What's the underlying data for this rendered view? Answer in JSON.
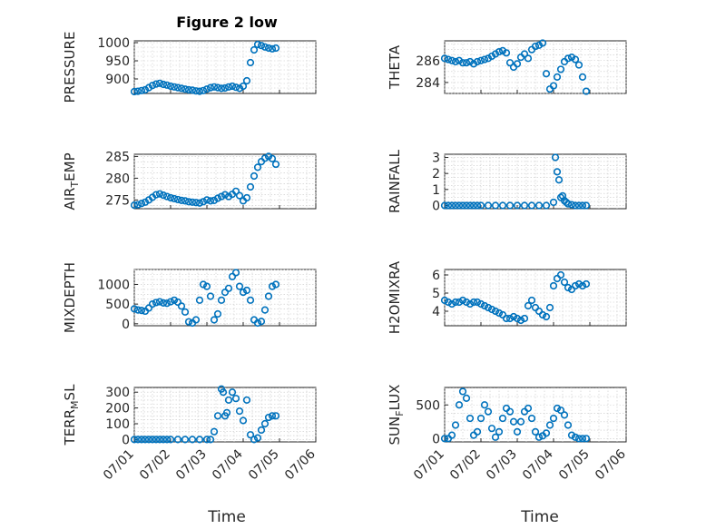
{
  "figure": {
    "title": "Figure 2 low",
    "marker_color": "#0072BD",
    "xlabel": "Time",
    "xticks": [
      "07/01",
      "07/02",
      "07/03",
      "07/04",
      "07/05",
      "07/06"
    ],
    "xlim_days": [
      0,
      5
    ]
  },
  "chart_data": [
    {
      "type": "scatter",
      "id": "pressure",
      "ylabel": "PRESSURE",
      "ylabel_sub": "",
      "yticks": [
        "900",
        "950",
        "1000"
      ],
      "yticks_val": [
        900,
        950,
        1000
      ],
      "ylim": [
        860,
        1005
      ],
      "x": [
        0,
        0.1,
        0.2,
        0.3,
        0.4,
        0.5,
        0.6,
        0.7,
        0.8,
        0.9,
        1.0,
        1.1,
        1.2,
        1.3,
        1.4,
        1.5,
        1.6,
        1.7,
        1.8,
        1.9,
        2.0,
        2.1,
        2.2,
        2.3,
        2.4,
        2.5,
        2.6,
        2.7,
        2.8,
        2.9,
        3.0,
        3.1,
        3.2,
        3.3,
        3.4,
        3.5,
        3.6,
        3.7,
        3.8,
        3.9
      ],
      "y": [
        865,
        866,
        868,
        870,
        876,
        882,
        886,
        888,
        885,
        883,
        880,
        878,
        876,
        874,
        872,
        870,
        869,
        867,
        866,
        868,
        872,
        876,
        878,
        876,
        874,
        875,
        878,
        880,
        877,
        874,
        880,
        895,
        945,
        980,
        995,
        992,
        988,
        985,
        983,
        985
      ]
    },
    {
      "type": "scatter",
      "id": "theta",
      "ylabel": "THETA",
      "ylabel_sub": "",
      "yticks": [
        "284",
        "286"
      ],
      "yticks_val": [
        284,
        286
      ],
      "ylim": [
        283,
        287.8
      ],
      "x": [
        0,
        0.1,
        0.2,
        0.3,
        0.4,
        0.5,
        0.6,
        0.7,
        0.8,
        0.9,
        1.0,
        1.1,
        1.2,
        1.3,
        1.4,
        1.5,
        1.6,
        1.7,
        1.8,
        1.9,
        2.0,
        2.1,
        2.2,
        2.3,
        2.4,
        2.5,
        2.6,
        2.7,
        2.8,
        2.9,
        3.0,
        3.1,
        3.2,
        3.3,
        3.4,
        3.5,
        3.6,
        3.7,
        3.8,
        3.9
      ],
      "y": [
        286.2,
        286.1,
        286.0,
        285.9,
        286.0,
        285.8,
        285.8,
        285.9,
        285.7,
        285.9,
        286.0,
        286.1,
        286.2,
        286.4,
        286.6,
        286.8,
        286.9,
        286.7,
        285.8,
        285.4,
        285.7,
        286.3,
        286.6,
        286.2,
        287.0,
        287.3,
        287.4,
        287.6,
        284.8,
        283.4,
        283.7,
        284.5,
        285.2,
        285.9,
        286.2,
        286.3,
        286.1,
        285.6,
        284.5,
        283.2
      ]
    },
    {
      "type": "scatter",
      "id": "air_temp",
      "ylabel": "AIR",
      "ylabel_sub": "T",
      "ylabel_rest": "EMP",
      "yticks": [
        "275",
        "280",
        "285"
      ],
      "yticks_val": [
        275,
        280,
        285
      ],
      "ylim": [
        273,
        285.5
      ],
      "x": [
        0,
        0.1,
        0.2,
        0.3,
        0.4,
        0.5,
        0.6,
        0.7,
        0.8,
        0.9,
        1.0,
        1.1,
        1.2,
        1.3,
        1.4,
        1.5,
        1.6,
        1.7,
        1.8,
        1.9,
        2.0,
        2.1,
        2.2,
        2.3,
        2.4,
        2.5,
        2.6,
        2.7,
        2.8,
        2.9,
        3.0,
        3.1,
        3.2,
        3.3,
        3.4,
        3.5,
        3.6,
        3.7,
        3.8,
        3.9
      ],
      "y": [
        273.8,
        273.9,
        274.2,
        274.5,
        275.0,
        275.6,
        276.2,
        276.4,
        276.1,
        275.8,
        275.5,
        275.3,
        275.1,
        274.9,
        274.8,
        274.6,
        274.5,
        274.4,
        274.3,
        274.6,
        275.0,
        274.8,
        274.9,
        275.4,
        275.8,
        276.2,
        275.8,
        276.3,
        277.0,
        276.0,
        274.8,
        275.5,
        278.0,
        280.5,
        282.5,
        283.8,
        284.6,
        285.0,
        284.5,
        283.2
      ]
    },
    {
      "type": "scatter",
      "id": "rainfall",
      "ylabel": "RAINFALL",
      "ylabel_sub": "",
      "yticks": [
        "0",
        "1",
        "2",
        "3"
      ],
      "yticks_val": [
        0,
        1,
        2,
        3
      ],
      "ylim": [
        -0.2,
        3.2
      ],
      "x": [
        0,
        0.1,
        0.2,
        0.3,
        0.4,
        0.5,
        0.6,
        0.7,
        0.8,
        0.9,
        1.0,
        1.2,
        1.4,
        1.6,
        1.8,
        2.0,
        2.2,
        2.4,
        2.6,
        2.8,
        3.0,
        3.05,
        3.1,
        3.15,
        3.2,
        3.25,
        3.3,
        3.35,
        3.4,
        3.5,
        3.6,
        3.7,
        3.8,
        3.9
      ],
      "y": [
        0,
        0,
        0,
        0,
        0,
        0,
        0,
        0,
        0,
        0,
        0,
        0,
        0,
        0,
        0,
        0,
        0,
        0,
        0,
        0,
        0.2,
        3.0,
        2.1,
        1.6,
        0.5,
        0.6,
        0.3,
        0.2,
        0.1,
        0.05,
        0,
        0,
        0,
        0
      ]
    },
    {
      "type": "scatter",
      "id": "mixdepth",
      "ylabel": "MIXDEPTH",
      "ylabel_sub": "",
      "yticks": [
        "0",
        "500",
        "1000"
      ],
      "yticks_val": [
        0,
        500,
        1000
      ],
      "ylim": [
        -50,
        1380
      ],
      "x": [
        0,
        0.1,
        0.2,
        0.3,
        0.4,
        0.5,
        0.6,
        0.7,
        0.8,
        0.9,
        1.0,
        1.1,
        1.2,
        1.3,
        1.4,
        1.5,
        1.6,
        1.7,
        1.8,
        1.9,
        2.0,
        2.1,
        2.2,
        2.3,
        2.4,
        2.5,
        2.6,
        2.7,
        2.8,
        2.9,
        3.0,
        3.1,
        3.2,
        3.3,
        3.4,
        3.5,
        3.6,
        3.7,
        3.8,
        3.9
      ],
      "y": [
        380,
        350,
        340,
        320,
        400,
        500,
        540,
        560,
        530,
        520,
        560,
        600,
        550,
        450,
        300,
        50,
        20,
        100,
        600,
        1000,
        950,
        700,
        100,
        250,
        600,
        800,
        900,
        1200,
        1300,
        950,
        800,
        850,
        600,
        100,
        20,
        60,
        350,
        700,
        950,
        1000
      ]
    },
    {
      "type": "scatter",
      "id": "h2omixra",
      "ylabel": "H2OMIXRA",
      "ylabel_sub": "",
      "yticks": [
        "4",
        "5",
        "6"
      ],
      "yticks_val": [
        4,
        5,
        6
      ],
      "ylim": [
        3.2,
        6.3
      ],
      "x": [
        0,
        0.1,
        0.2,
        0.3,
        0.4,
        0.5,
        0.6,
        0.7,
        0.8,
        0.9,
        1.0,
        1.1,
        1.2,
        1.3,
        1.4,
        1.5,
        1.6,
        1.7,
        1.8,
        1.9,
        2.0,
        2.1,
        2.2,
        2.3,
        2.4,
        2.5,
        2.6,
        2.7,
        2.8,
        2.9,
        3.0,
        3.1,
        3.2,
        3.3,
        3.4,
        3.5,
        3.6,
        3.7,
        3.8,
        3.9
      ],
      "y": [
        4.6,
        4.5,
        4.4,
        4.5,
        4.5,
        4.6,
        4.5,
        4.4,
        4.5,
        4.5,
        4.4,
        4.3,
        4.2,
        4.1,
        4.0,
        3.9,
        3.8,
        3.6,
        3.6,
        3.7,
        3.6,
        3.5,
        3.6,
        4.3,
        4.6,
        4.2,
        4.0,
        3.8,
        3.7,
        4.2,
        5.4,
        5.8,
        6.0,
        5.6,
        5.3,
        5.2,
        5.4,
        5.5,
        5.4,
        5.5
      ]
    },
    {
      "type": "scatter",
      "id": "terr_msl",
      "ylabel": "TERR",
      "ylabel_sub": "M",
      "ylabel_rest": "SL",
      "yticks": [
        "0",
        "100",
        "200",
        "300"
      ],
      "yticks_val": [
        0,
        100,
        200,
        300
      ],
      "ylim": [
        -15,
        330
      ],
      "x": [
        0,
        0.1,
        0.2,
        0.3,
        0.4,
        0.5,
        0.6,
        0.7,
        0.8,
        0.9,
        1.0,
        1.2,
        1.4,
        1.6,
        1.8,
        2.0,
        2.1,
        2.2,
        2.3,
        2.4,
        2.45,
        2.5,
        2.55,
        2.6,
        2.7,
        2.8,
        2.9,
        3.0,
        3.1,
        3.2,
        3.3,
        3.4,
        3.5,
        3.6,
        3.7,
        3.8,
        3.9
      ],
      "y": [
        0,
        0,
        0,
        0,
        0,
        0,
        0,
        0,
        0,
        0,
        0,
        0,
        0,
        0,
        0,
        0,
        0,
        50,
        150,
        320,
        300,
        150,
        170,
        250,
        300,
        260,
        180,
        120,
        250,
        30,
        0,
        10,
        60,
        100,
        140,
        150,
        150
      ]
    },
    {
      "type": "scatter",
      "id": "sun_flux",
      "ylabel": "SUN",
      "ylabel_sub": "F",
      "ylabel_rest": "LUX",
      "yticks": [
        "0",
        "500"
      ],
      "yticks_val": [
        0,
        500
      ],
      "ylim": [
        -50,
        760
      ],
      "x": [
        0,
        0.1,
        0.2,
        0.3,
        0.4,
        0.5,
        0.6,
        0.7,
        0.8,
        0.9,
        1.0,
        1.1,
        1.2,
        1.3,
        1.4,
        1.5,
        1.6,
        1.7,
        1.8,
        1.9,
        2.0,
        2.1,
        2.2,
        2.3,
        2.4,
        2.5,
        2.6,
        2.7,
        2.8,
        2.9,
        3.0,
        3.1,
        3.2,
        3.3,
        3.4,
        3.5,
        3.6,
        3.7,
        3.8,
        3.9
      ],
      "y": [
        0,
        0,
        50,
        200,
        500,
        700,
        600,
        300,
        50,
        100,
        300,
        500,
        400,
        150,
        20,
        100,
        300,
        450,
        400,
        250,
        100,
        250,
        400,
        450,
        300,
        100,
        20,
        40,
        80,
        200,
        300,
        450,
        420,
        350,
        200,
        50,
        20,
        0,
        0,
        0
      ]
    }
  ]
}
